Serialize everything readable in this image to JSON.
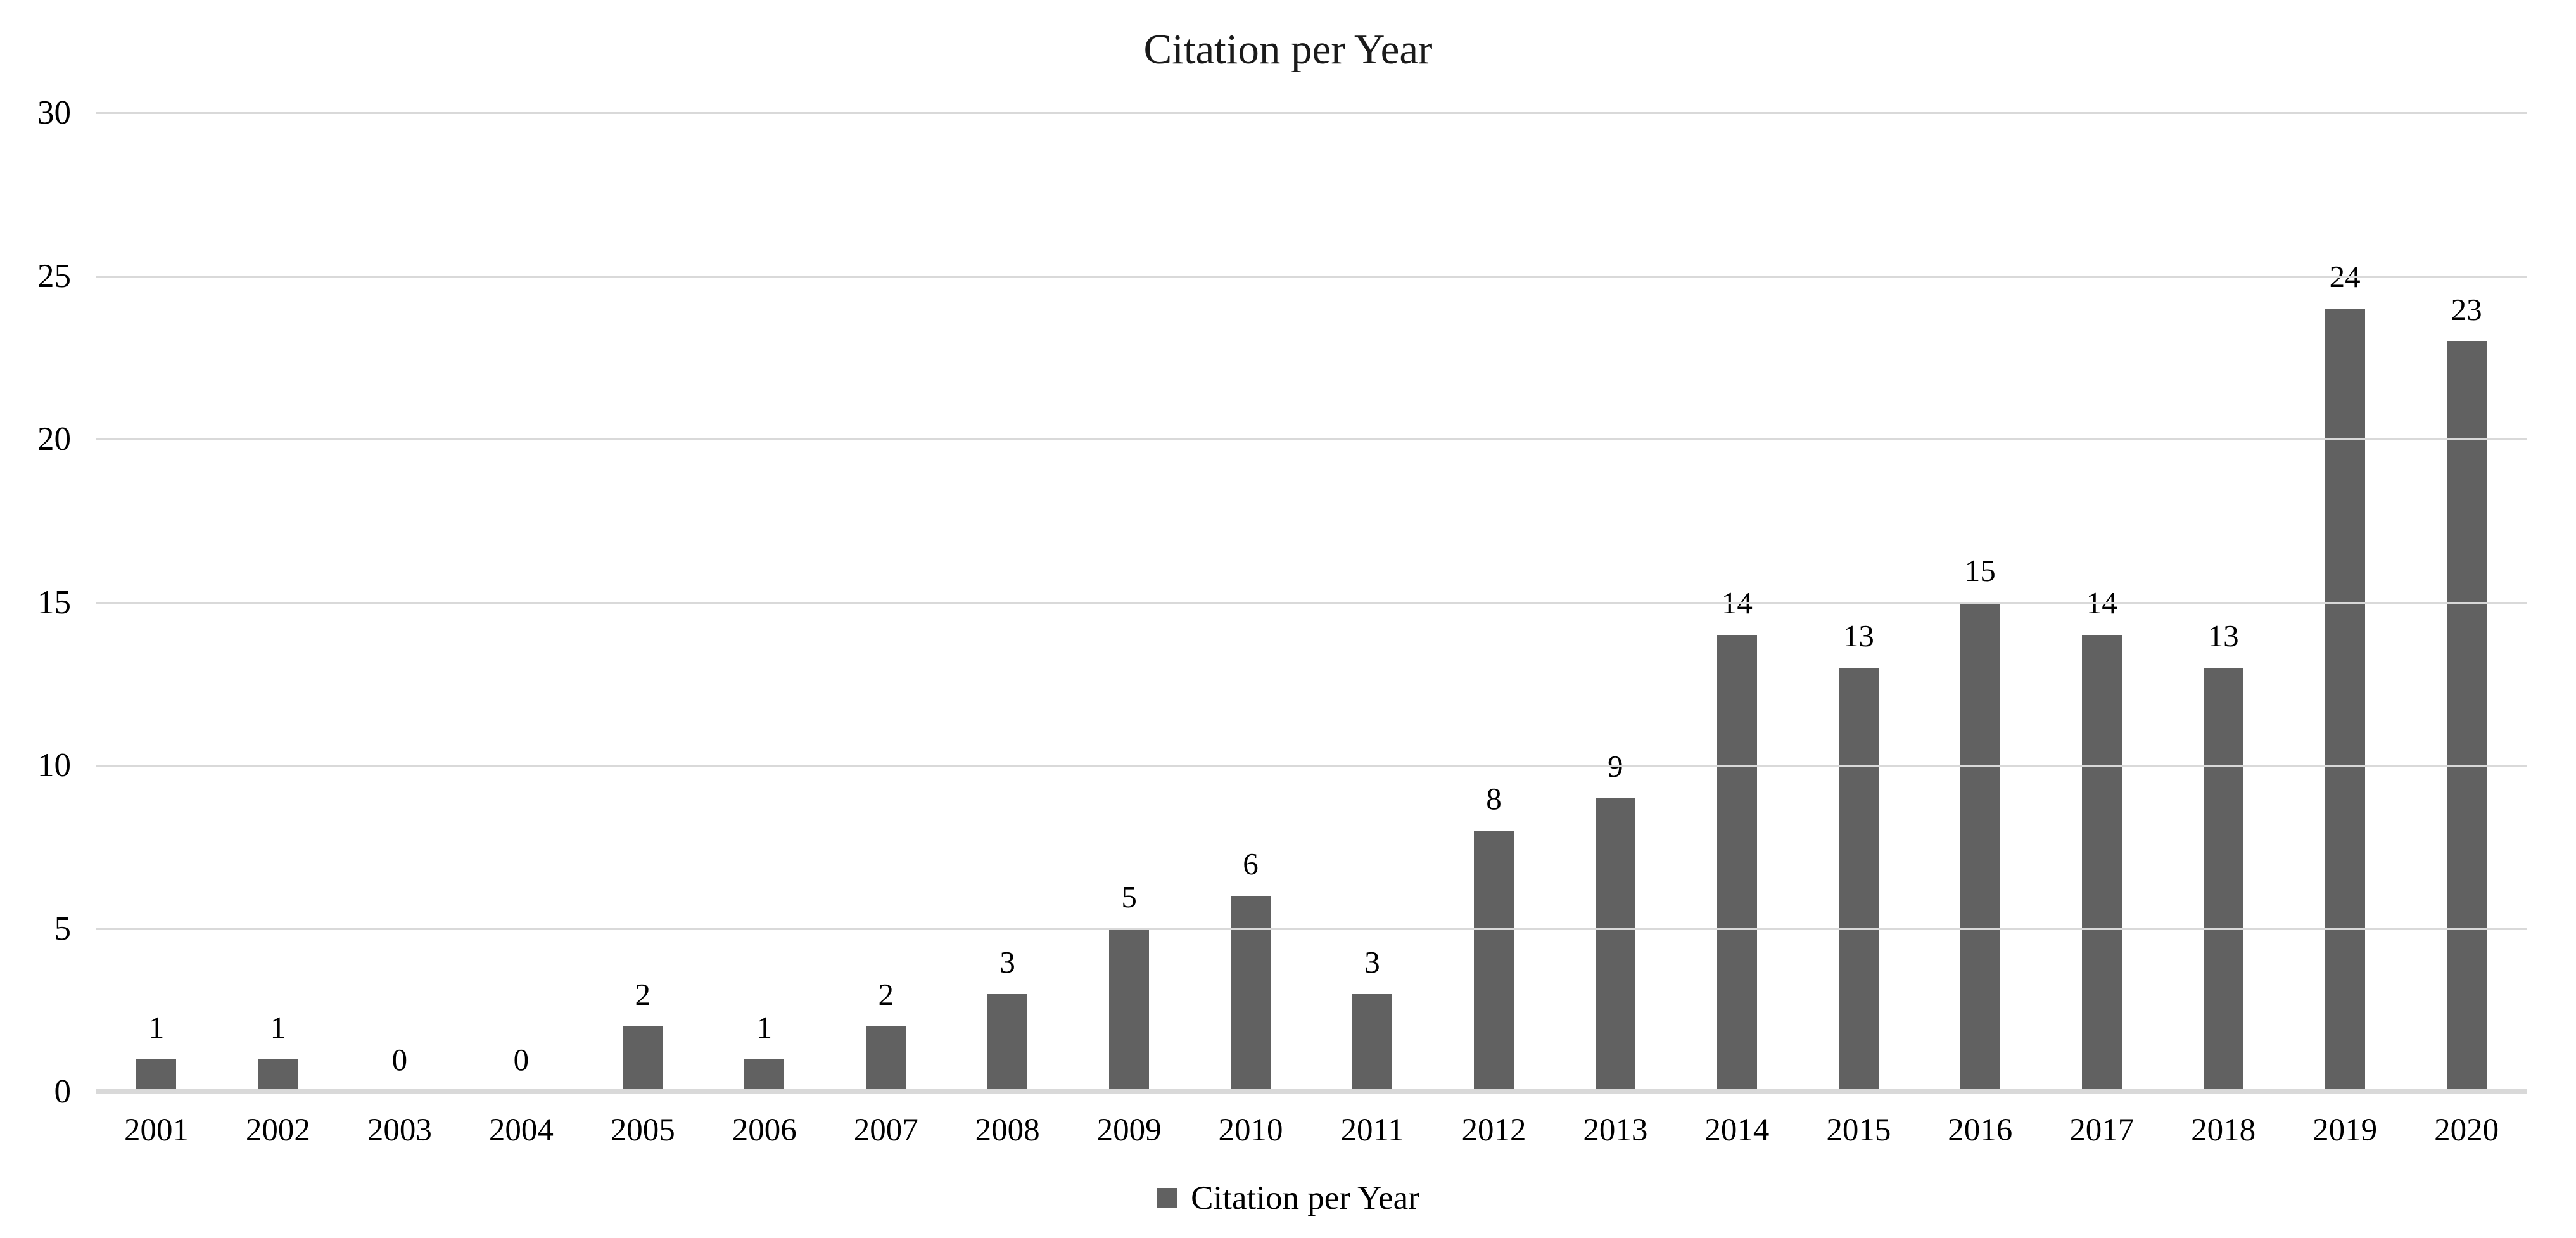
{
  "title": "Citation per Year",
  "legend": {
    "label": "Citation per Year"
  },
  "colors": {
    "bar": "#616161",
    "gridline": "#d9d9d9",
    "axis_line": "#d9d9d9",
    "text": "#000000",
    "background": "#ffffff"
  },
  "chart_data": {
    "type": "bar",
    "title": "Citation per Year",
    "series_name": "Citation per Year",
    "categories": [
      "2001",
      "2002",
      "2003",
      "2004",
      "2005",
      "2006",
      "2007",
      "2008",
      "2009",
      "2010",
      "2011",
      "2012",
      "2013",
      "2014",
      "2015",
      "2016",
      "2017",
      "2018",
      "2019",
      "2020"
    ],
    "values": [
      1,
      1,
      0,
      0,
      2,
      1,
      2,
      3,
      5,
      6,
      3,
      8,
      9,
      14,
      13,
      15,
      14,
      13,
      24,
      23
    ],
    "xlabel": "",
    "ylabel": "",
    "ylim": [
      0,
      30
    ],
    "yticks": [
      0,
      5,
      10,
      15,
      20,
      25,
      30
    ],
    "grid": true,
    "data_labels": true,
    "legend_position": "bottom",
    "bar_color": "#616161"
  }
}
